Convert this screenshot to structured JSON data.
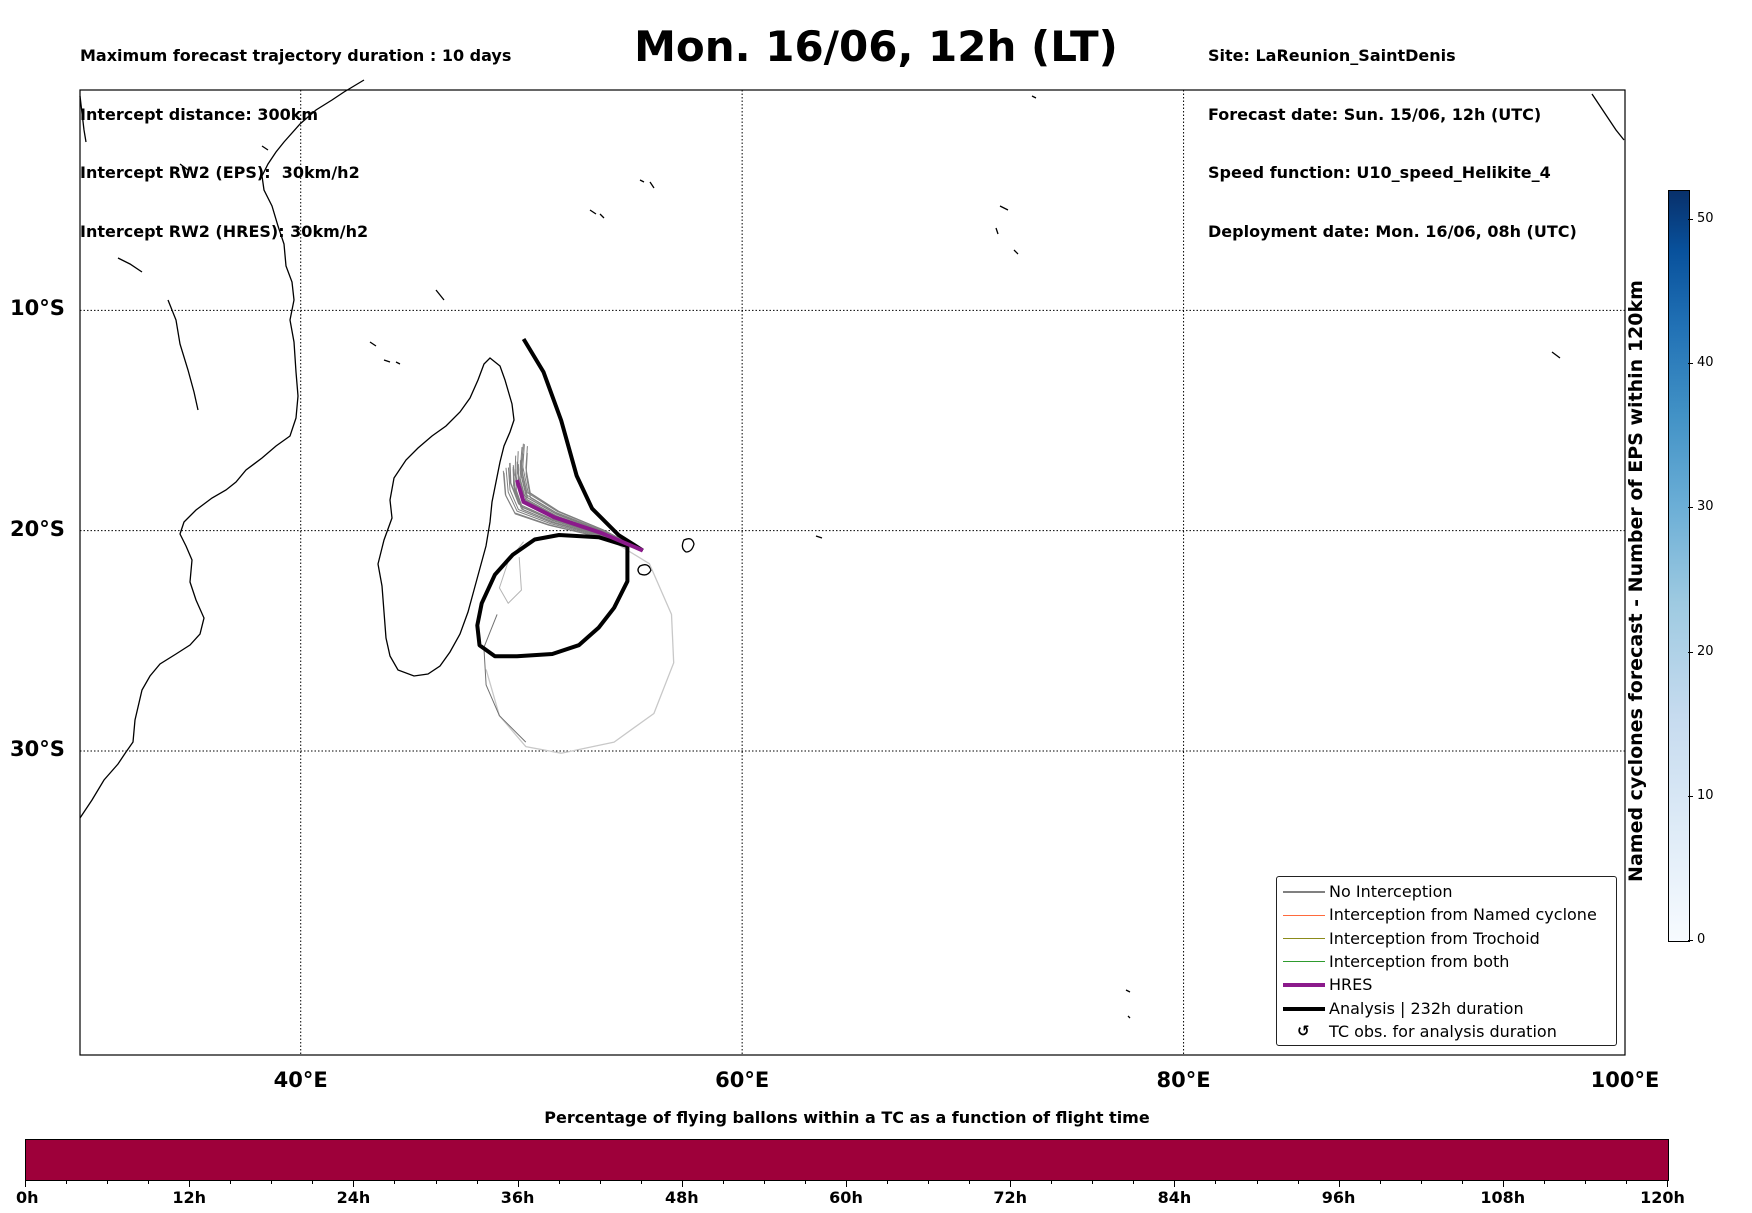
{
  "header_left": [
    "Maximum forecast trajectory duration : 10 days",
    "Intercept distance: 300km",
    "Intercept RW2 (EPS):  30km/h2",
    "Intercept RW2 (HRES): 30km/h2"
  ],
  "title": "Mon. 16/06, 12h (LT)",
  "header_right": [
    "Site: LaReunion_SaintDenis",
    "Forecast date: Sun. 15/06, 12h (UTC)",
    "Speed function: U10_speed_Helikite_4",
    "Deployment date: Mon. 16/06, 08h (UTC)"
  ],
  "map": {
    "extent": {
      "lon": [
        30,
        100
      ],
      "lat": [
        -43.8,
        0
      ]
    },
    "lat_labels": [
      {
        "lat": -10,
        "text": "10°S"
      },
      {
        "lat": -20,
        "text": "20°S"
      },
      {
        "lat": -30,
        "text": "30°S"
      }
    ],
    "lon_labels": [
      {
        "lon": 40,
        "text": "40°E"
      },
      {
        "lon": 60,
        "text": "60°E"
      },
      {
        "lon": 80,
        "text": "80°E"
      },
      {
        "lon": 100,
        "text": "100°E"
      }
    ],
    "hres_track": [
      [
        55.5,
        -20.9
      ],
      [
        53.6,
        -20.1
      ],
      [
        51.5,
        -19.4
      ],
      [
        50.1,
        -18.7
      ],
      [
        49.8,
        -17.7
      ]
    ],
    "analysis_track": [
      [
        55.5,
        -20.9
      ],
      [
        54.4,
        -20.2
      ],
      [
        53.2,
        -19.0
      ],
      [
        52.5,
        -17.5
      ],
      [
        51.8,
        -15.0
      ],
      [
        51.0,
        -12.8
      ],
      [
        50.1,
        -11.3
      ]
    ],
    "analysis_loop": [
      [
        54.8,
        -20.7
      ],
      [
        53.5,
        -20.3
      ],
      [
        51.7,
        -20.2
      ],
      [
        50.6,
        -20.4
      ],
      [
        49.6,
        -21.1
      ],
      [
        48.8,
        -22.0
      ],
      [
        48.2,
        -23.3
      ],
      [
        48.0,
        -24.3
      ],
      [
        48.1,
        -25.2
      ],
      [
        48.8,
        -25.7
      ],
      [
        49.8,
        -25.7
      ],
      [
        51.4,
        -25.6
      ],
      [
        52.6,
        -25.2
      ],
      [
        53.5,
        -24.4
      ],
      [
        54.2,
        -23.5
      ],
      [
        54.8,
        -22.3
      ]
    ],
    "ensemble_loop": [
      [
        54.0,
        -20.4
      ],
      [
        55.8,
        -21.5
      ],
      [
        56.8,
        -23.8
      ],
      [
        56.9,
        -26.0
      ],
      [
        56.0,
        -28.3
      ],
      [
        54.2,
        -29.6
      ],
      [
        51.8,
        -30.1
      ],
      [
        50.2,
        -29.8
      ],
      [
        49.0,
        -28.4
      ],
      [
        48.4,
        -26.3
      ]
    ],
    "colors": {
      "hres": "#8b1a8b",
      "analysis": "#000000",
      "no_interception": "#808080",
      "named_cyclone": "#ff6a3d",
      "trochoid": "#8b8b1a",
      "both": "#2e9b2e"
    }
  },
  "legend": [
    {
      "label": "No Interception",
      "swatch": "line",
      "color": "#808080",
      "width": 1.2
    },
    {
      "label": "Interception from Named cyclone",
      "swatch": "line",
      "color": "#ff6a3d",
      "width": 1.2
    },
    {
      "label": "Interception from Trochoid",
      "swatch": "line",
      "color": "#8b8b1a",
      "width": 1.2
    },
    {
      "label": "Interception from both",
      "swatch": "line",
      "color": "#2e9b2e",
      "width": 1.2
    },
    {
      "label": "HRES",
      "swatch": "line",
      "color": "#8b1a8b",
      "width": 4
    },
    {
      "label": "Analysis | 232h duration",
      "swatch": "line",
      "color": "#000000",
      "width": 4
    },
    {
      "label": "TC obs. for analysis duration",
      "swatch": "symbol",
      "symbol": "↺"
    }
  ],
  "colorbar_vertical": {
    "label": "Named cyclones forecast - Number of EPS within 120km",
    "ticks": [
      0,
      10,
      20,
      30,
      40,
      50
    ],
    "range": [
      0,
      52
    ]
  },
  "colorbar_horizontal": {
    "title": "Percentage of flying ballons within a TC as a function of flight time",
    "ticks": [
      "0h",
      "12h",
      "24h",
      "36h",
      "48h",
      "60h",
      "72h",
      "84h",
      "96h",
      "108h",
      "120h"
    ],
    "color": "#9e003a"
  }
}
